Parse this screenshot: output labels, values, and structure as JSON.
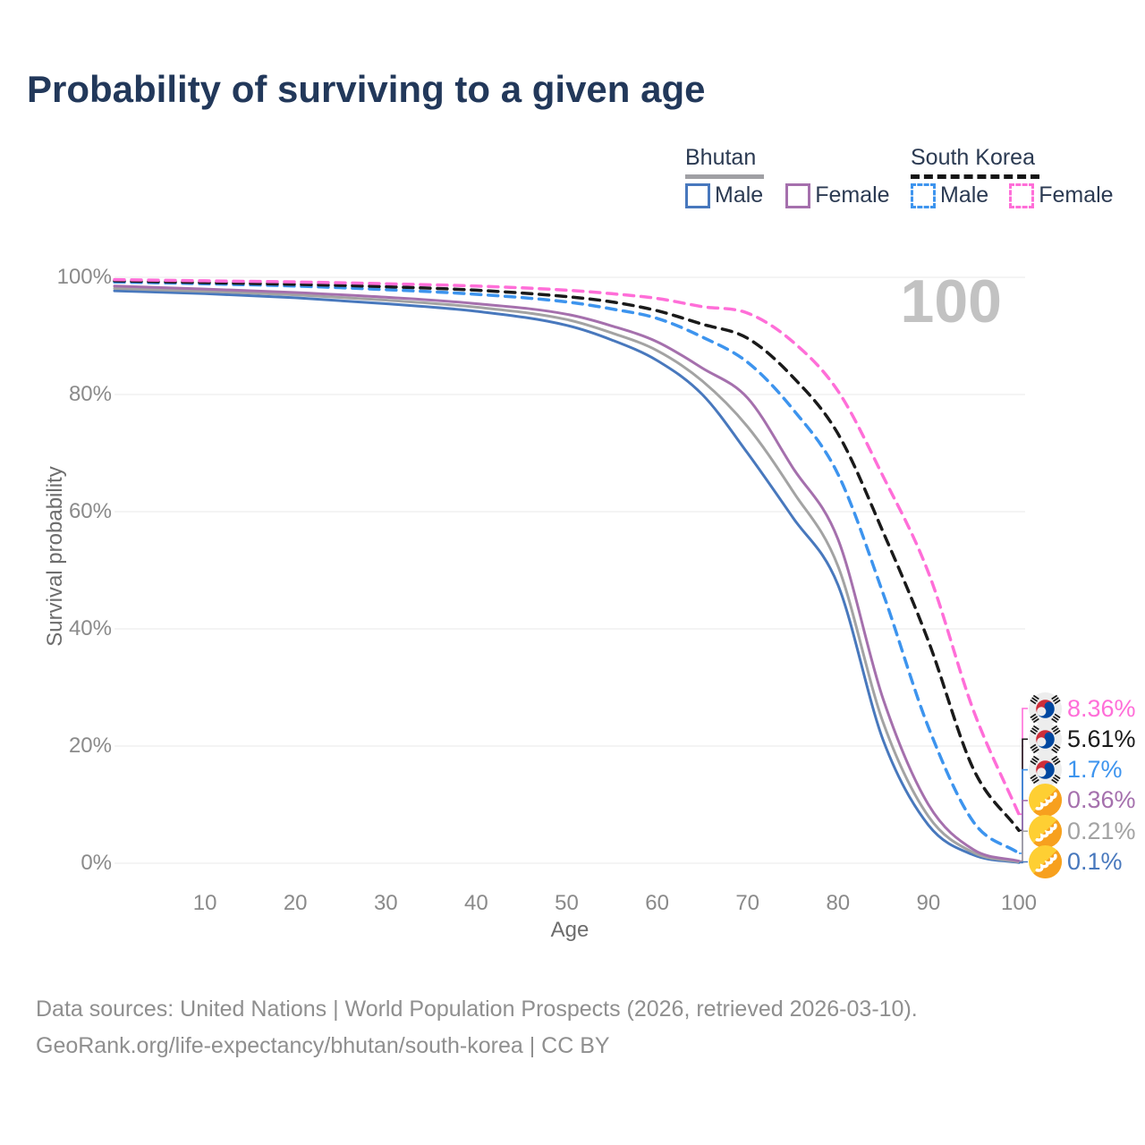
{
  "title": "Probability of surviving to a given age",
  "watermark": "100",
  "legend": {
    "groups": [
      {
        "name": "Bhutan",
        "line_style": "solid",
        "underline_color": "#a0a0a4",
        "items": [
          {
            "label": "Male",
            "color": "#4878bd",
            "dashed": false
          },
          {
            "label": "Female",
            "color": "#a570ad",
            "dashed": false
          }
        ]
      },
      {
        "name": "South Korea",
        "line_style": "dashed",
        "underline_color": "#161616",
        "items": [
          {
            "label": "Male",
            "color": "#3d94ee",
            "dashed": true
          },
          {
            "label": "Female",
            "color": "#ff6ed8",
            "dashed": true
          }
        ]
      }
    ]
  },
  "axes": {
    "y": {
      "title": "Survival probability",
      "tick_labels": [
        "0%",
        "20%",
        "40%",
        "60%",
        "80%",
        "100%"
      ],
      "tick_values": [
        0,
        20,
        40,
        60,
        80,
        100
      ]
    },
    "x": {
      "title": "Age",
      "tick_values": [
        10,
        20,
        30,
        40,
        50,
        60,
        70,
        80,
        90,
        100
      ]
    }
  },
  "end_labels": [
    {
      "value_label": "8.36%",
      "value": 8.36,
      "color": "#ff6ed8",
      "flag": "south-korea"
    },
    {
      "value_label": "5.61%",
      "value": 5.61,
      "color": "#1a1a1a",
      "flag": "south-korea"
    },
    {
      "value_label": "1.7%",
      "value": 1.7,
      "color": "#3d94ee",
      "flag": "south-korea"
    },
    {
      "value_label": "0.36%",
      "value": 0.36,
      "color": "#a570ad",
      "flag": "bhutan"
    },
    {
      "value_label": "0.21%",
      "value": 0.21,
      "color": "#a3a3a3",
      "flag": "bhutan"
    },
    {
      "value_label": "0.1%",
      "value": 0.1,
      "color": "#4878bd",
      "flag": "bhutan"
    }
  ],
  "footer": {
    "line1": "Data sources: United Nations | World Population Prospects (2026, retrieved 2026-03-10).",
    "line2": "GeoRank.org/life-expectancy/bhutan/south-korea | CC BY"
  },
  "chart_data": {
    "type": "line",
    "title": "Probability of surviving to a given age",
    "xlabel": "Age",
    "ylabel": "Survival probability",
    "xlim": [
      0,
      100
    ],
    "ylim": [
      0,
      100
    ],
    "grid": "horizontal",
    "legend_position": "top-right",
    "x": [
      0,
      10,
      20,
      30,
      40,
      50,
      55,
      60,
      65,
      70,
      75,
      80,
      85,
      90,
      95,
      100
    ],
    "series": [
      {
        "name": "Bhutan Male",
        "country": "Bhutan",
        "sex": "Male",
        "color": "#4878bd",
        "dashed": false,
        "values": [
          97.7,
          97.2,
          96.5,
          95.5,
          94.2,
          91.8,
          89.3,
          85.8,
          80.0,
          70.0,
          59.0,
          47.5,
          21.0,
          6.5,
          1.4,
          0.1
        ]
      },
      {
        "name": "Bhutan Total",
        "country": "Bhutan",
        "sex": "Both",
        "color": "#a3a3a3",
        "dashed": false,
        "values": [
          98.1,
          97.6,
          97.0,
          96.1,
          94.9,
          92.8,
          90.5,
          87.5,
          82.3,
          74.5,
          63.5,
          50.7,
          24.0,
          8.0,
          1.8,
          0.21
        ]
      },
      {
        "name": "Bhutan Female",
        "country": "Bhutan",
        "sex": "Female",
        "color": "#a570ad",
        "dashed": false,
        "values": [
          98.5,
          98.0,
          97.4,
          96.6,
          95.5,
          93.7,
          91.7,
          89.0,
          84.5,
          79.4,
          67.5,
          55.3,
          28.0,
          10.0,
          2.3,
          0.36
        ]
      },
      {
        "name": "South Korea Male",
        "country": "South Korea",
        "sex": "Male",
        "color": "#3d94ee",
        "dashed": true,
        "values": [
          99.2,
          98.9,
          98.5,
          97.9,
          97.1,
          95.8,
          94.6,
          93.0,
          89.8,
          85.5,
          77.5,
          66.4,
          46.0,
          23.2,
          7.0,
          1.7
        ]
      },
      {
        "name": "South Korea Total",
        "country": "South Korea",
        "sex": "Both",
        "color": "#1a1a1a",
        "dashed": true,
        "values": [
          99.4,
          99.1,
          98.8,
          98.4,
          97.8,
          96.7,
          95.8,
          94.3,
          92.0,
          89.6,
          83.0,
          73.3,
          56.5,
          37.9,
          16.0,
          5.61
        ]
      },
      {
        "name": "South Korea Female",
        "country": "South Korea",
        "sex": "Female",
        "color": "#ff6ed8",
        "dashed": true,
        "values": [
          99.6,
          99.4,
          99.2,
          98.9,
          98.5,
          97.8,
          97.2,
          96.4,
          95.0,
          93.9,
          89.0,
          80.6,
          66.0,
          49.6,
          26.0,
          8.36
        ]
      }
    ]
  }
}
